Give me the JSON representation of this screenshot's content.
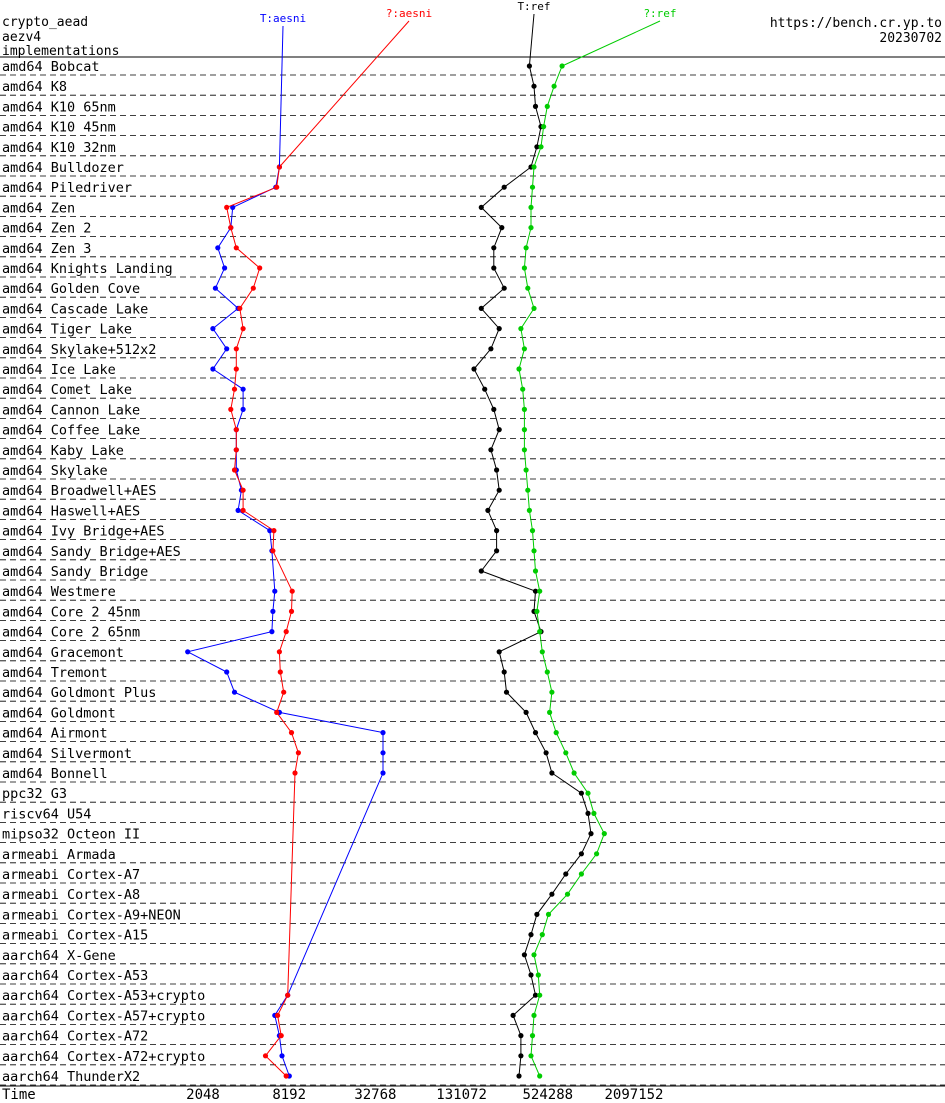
{
  "header": {
    "line1": "crypto_aead",
    "line2": "aezv4",
    "line3": "implementations",
    "site": "https://bench.cr.yp.to",
    "date": "20230702"
  },
  "chart_data": {
    "type": "line",
    "xscale": "log2",
    "xlabel": "Time",
    "xticks": [
      2048,
      8192,
      32768,
      131072,
      524288,
      2097152
    ],
    "series": [
      {
        "name": "T:aesni",
        "color": "#0000ff"
      },
      {
        "name": "?:aesni",
        "color": "#ff0000"
      },
      {
        "name": "T:ref",
        "color": "#000000"
      },
      {
        "name": "?:ref",
        "color": "#00cc00"
      }
    ],
    "rows": [
      {
        "label": "amd64 Bobcat",
        "ref_t": 390000,
        "ref_q": 660000
      },
      {
        "label": "amd64 K8",
        "ref_t": 420000,
        "ref_q": 580000
      },
      {
        "label": "amd64 K10 65nm",
        "ref_t": 430000,
        "ref_q": 520000
      },
      {
        "label": "amd64 K10 45nm",
        "ref_t": 470000,
        "ref_q": 490000
      },
      {
        "label": "amd64 K10 32nm",
        "ref_t": 440000,
        "ref_q": 470000
      },
      {
        "label": "amd64 Bulldozer",
        "aesni_t": 7000,
        "aesni_q": 7000,
        "ref_t": 400000,
        "ref_q": 420000
      },
      {
        "label": "amd64 Piledriver",
        "aesni_t": 6600,
        "aesni_q": 6700,
        "ref_t": 260000,
        "ref_q": 410000
      },
      {
        "label": "amd64 Zen",
        "aesni_t": 3300,
        "aesni_q": 3000,
        "ref_t": 180000,
        "ref_q": 400000
      },
      {
        "label": "amd64 Zen 2",
        "aesni_t": 3200,
        "aesni_q": 3200,
        "ref_t": 250000,
        "ref_q": 400000
      },
      {
        "label": "amd64 Zen 3",
        "aesni_t": 2600,
        "aesni_q": 3500,
        "ref_t": 220000,
        "ref_q": 370000
      },
      {
        "label": "amd64 Knights Landing",
        "aesni_t": 2900,
        "aesni_q": 5100,
        "ref_t": 220000,
        "ref_q": 360000
      },
      {
        "label": "amd64 Golden Cove",
        "aesni_t": 2500,
        "aesni_q": 4600,
        "ref_t": 260000,
        "ref_q": 380000
      },
      {
        "label": "amd64 Cascade Lake",
        "aesni_t": 3600,
        "aesni_q": 3700,
        "ref_t": 180000,
        "ref_q": 420000
      },
      {
        "label": "amd64 Tiger Lake",
        "aesni_t": 2400,
        "aesni_q": 3900,
        "ref_t": 240000,
        "ref_q": 340000
      },
      {
        "label": "amd64 Skylake+512x2",
        "aesni_t": 3000,
        "aesni_q": 3500,
        "ref_t": 210000,
        "ref_q": 360000
      },
      {
        "label": "amd64 Ice Lake",
        "aesni_t": 2400,
        "aesni_q": 3500,
        "ref_t": 160000,
        "ref_q": 330000
      },
      {
        "label": "amd64 Comet Lake",
        "aesni_t": 3900,
        "aesni_q": 3400,
        "ref_t": 190000,
        "ref_q": 350000
      },
      {
        "label": "amd64 Cannon Lake",
        "aesni_t": 3900,
        "aesni_q": 3200,
        "ref_t": 220000,
        "ref_q": 360000
      },
      {
        "label": "amd64 Coffee Lake",
        "aesni_t": 3500,
        "aesni_q": 3500,
        "ref_t": 240000,
        "ref_q": 360000
      },
      {
        "label": "amd64 Kaby Lake",
        "aesni_t": 3500,
        "aesni_q": 3500,
        "ref_t": 210000,
        "ref_q": 360000
      },
      {
        "label": "amd64 Skylake",
        "aesni_t": 3500,
        "aesni_q": 3400,
        "ref_t": 230000,
        "ref_q": 370000
      },
      {
        "label": "amd64 Broadwell+AES",
        "aesni_t": 3800,
        "aesni_q": 3900,
        "ref_t": 240000,
        "ref_q": 380000
      },
      {
        "label": "amd64 Haswell+AES",
        "aesni_t": 3600,
        "aesni_q": 3900,
        "ref_t": 200000,
        "ref_q": 390000
      },
      {
        "label": "amd64 Ivy Bridge+AES",
        "aesni_t": 6000,
        "aesni_q": 6400,
        "ref_t": 230000,
        "ref_q": 410000
      },
      {
        "label": "amd64 Sandy Bridge+AES",
        "aesni_t": 6200,
        "aesni_q": 6300,
        "ref_t": 230000,
        "ref_q": 420000
      },
      {
        "label": "amd64 Sandy Bridge",
        "ref_t": 180000,
        "ref_q": 430000
      },
      {
        "label": "amd64 Westmere",
        "aesni_t": 6500,
        "aesni_q": 8600,
        "ref_t": 430000,
        "ref_q": 460000
      },
      {
        "label": "amd64 Core 2 45nm",
        "aesni_t": 6300,
        "aesni_q": 8500,
        "ref_t": 420000,
        "ref_q": 440000
      },
      {
        "label": "amd64 Core 2 65nm",
        "aesni_t": 6200,
        "aesni_q": 7800,
        "ref_t": 470000,
        "ref_q": 460000
      },
      {
        "label": "amd64 Gracemont",
        "aesni_t": 1600,
        "aesni_q": 7000,
        "ref_t": 240000,
        "ref_q": 480000
      },
      {
        "label": "amd64 Tremont",
        "aesni_t": 3000,
        "aesni_q": 7100,
        "ref_t": 260000,
        "ref_q": 520000
      },
      {
        "label": "amd64 Goldmont Plus",
        "aesni_t": 3400,
        "aesni_q": 7500,
        "ref_t": 270000,
        "ref_q": 560000
      },
      {
        "label": "amd64 Goldmont",
        "aesni_t": 7000,
        "aesni_q": 6700,
        "ref_t": 370000,
        "ref_q": 540000
      },
      {
        "label": "amd64 Airmont",
        "aesni_t": 37000,
        "aesni_q": 8500,
        "ref_t": 430000,
        "ref_q": 600000
      },
      {
        "label": "amd64 Silvermont",
        "aesni_t": 37000,
        "aesni_q": 9500,
        "ref_t": 510000,
        "ref_q": 700000
      },
      {
        "label": "amd64 Bonnell",
        "aesni_t": 37000,
        "aesni_q": 9000,
        "ref_t": 560000,
        "ref_q": 800000
      },
      {
        "label": "ppc32 G3",
        "ref_t": 900000,
        "ref_q": 1000000
      },
      {
        "label": "riscv64 U54",
        "ref_t": 1000000,
        "ref_q": 1100000
      },
      {
        "label": "mipso32 Octeon II",
        "ref_t": 1050000,
        "ref_q": 1300000
      },
      {
        "label": "armeabi Armada",
        "ref_t": 900000,
        "ref_q": 1150000
      },
      {
        "label": "armeabi Cortex-A7",
        "ref_t": 700000,
        "ref_q": 900000
      },
      {
        "label": "armeabi Cortex-A8",
        "ref_t": 560000,
        "ref_q": 720000
      },
      {
        "label": "armeabi Cortex-A9+NEON",
        "ref_t": 440000,
        "ref_q": 530000
      },
      {
        "label": "armeabi Cortex-A15",
        "ref_t": 400000,
        "ref_q": 480000
      },
      {
        "label": "aarch64 X-Gene",
        "ref_t": 360000,
        "ref_q": 420000
      },
      {
        "label": "aarch64 Cortex-A53",
        "ref_t": 400000,
        "ref_q": 450000
      },
      {
        "label": "aarch64 Cortex-A53+crypto",
        "aesni_t": 8000,
        "aesni_q": 8000,
        "ref_t": 430000,
        "ref_q": 460000
      },
      {
        "label": "aarch64 Cortex-A57+crypto",
        "aesni_t": 6500,
        "aesni_q": 6800,
        "ref_t": 300000,
        "ref_q": 420000
      },
      {
        "label": "aarch64 Cortex-A72",
        "aesni_t": 7000,
        "aesni_q": 7200,
        "ref_t": 340000,
        "ref_q": 410000
      },
      {
        "label": "aarch64 Cortex-A72+crypto",
        "aesni_t": 7300,
        "aesni_q": 5600,
        "ref_t": 340000,
        "ref_q": 400000
      },
      {
        "label": "aarch64 ThunderX2",
        "aesni_t": 8200,
        "aesni_q": 7800,
        "ref_t": 330000,
        "ref_q": 460000
      }
    ]
  }
}
